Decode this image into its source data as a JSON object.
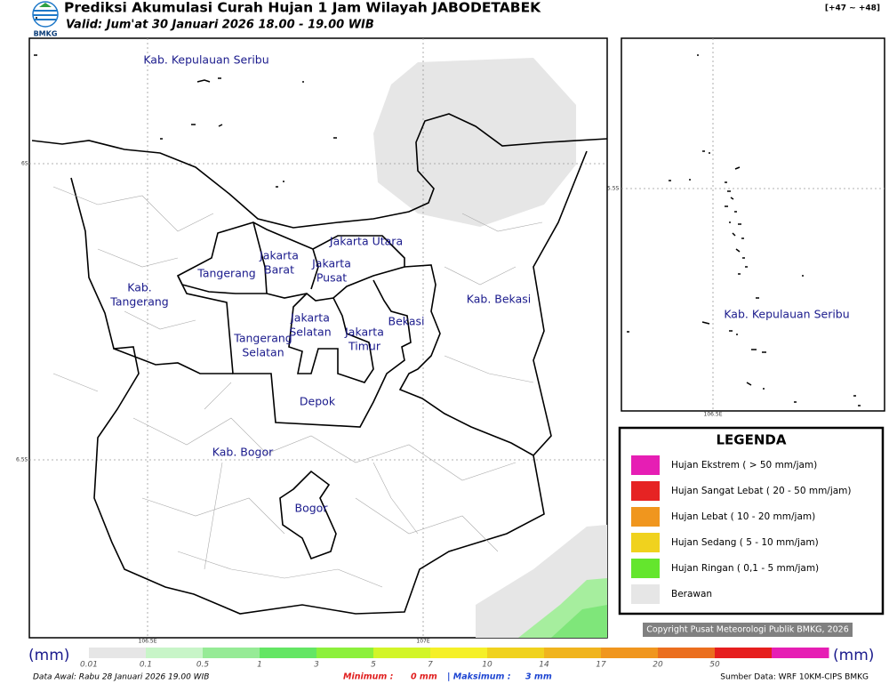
{
  "header": {
    "logo_text": "BMKG",
    "title": "Prediksi Akumulasi Curah Hujan 1 Jam Wilayah JABODETABEK",
    "valid": "Valid: Jum'at 30 Januari 2026 18.00 - 19.00 WIB",
    "range": "[+47 ~ +48]"
  },
  "main_map": {
    "regions": [
      {
        "lines": [
          "Kab. Kepulauan Seribu"
        ]
      },
      {
        "lines": [
          "Jakarta Utara"
        ]
      },
      {
        "lines": [
          "Jakarta",
          "Barat"
        ]
      },
      {
        "lines": [
          "Jakarta",
          "Pusat"
        ]
      },
      {
        "lines": [
          "Tangerang"
        ]
      },
      {
        "lines": [
          "Kab.",
          "Tangerang"
        ]
      },
      {
        "lines": [
          "Kab. Bekasi"
        ]
      },
      {
        "lines": [
          "Jakarta",
          "Selatan"
        ]
      },
      {
        "lines": [
          "Bekasi"
        ]
      },
      {
        "lines": [
          "Jakarta",
          "Timur"
        ]
      },
      {
        "lines": [
          "Tangerang",
          "Selatan"
        ]
      },
      {
        "lines": [
          "Depok"
        ]
      },
      {
        "lines": [
          "Kab. Bogor"
        ]
      },
      {
        "lines": [
          "Bogor"
        ]
      }
    ],
    "lat_labels": [
      "6S",
      "6.5S"
    ],
    "lon_labels": [
      "106.5E",
      "107E"
    ]
  },
  "inset_map": {
    "region": "Kab. Kepulauan Seribu",
    "lat_label": "5.5S",
    "lon_label": "106.5E"
  },
  "legend": {
    "title": "LEGENDA",
    "items": [
      {
        "label": "Hujan Ekstrem ( > 50 mm/jam)",
        "color": "#e61eb4"
      },
      {
        "label": "Hujan Sangat Lebat ( 20 - 50 mm/jam)",
        "color": "#e62323"
      },
      {
        "label": "Hujan Lebat ( 10 - 20 mm/jam)",
        "color": "#f0961e"
      },
      {
        "label": "Hujan Sedang ( 5 - 10 mm/jam)",
        "color": "#f0d21e"
      },
      {
        "label": "Hujan Ringan ( 0,1 - 5 mm/jam)",
        "color": "#64e62d"
      },
      {
        "label": "Berawan",
        "color": "#e6e6e6"
      }
    ]
  },
  "copyright": "Copyright Pusat Meteorologi Publik BMKG, 2026",
  "colorbar": {
    "unit_left": "(mm)",
    "unit_right": "(mm)",
    "labels": [
      "0.01",
      "0.1",
      "0.5",
      "1",
      "3",
      "5",
      "7",
      "10",
      "14",
      "17",
      "20",
      "50"
    ],
    "colors": [
      "#e6e6e6",
      "#c8f5c8",
      "#96eb96",
      "#64e664",
      "#8cf03c",
      "#d2f528",
      "#f5f028",
      "#f0d21e",
      "#f0b41e",
      "#f0961e",
      "#eb6e1e",
      "#e61e1e",
      "#e61eb4"
    ]
  },
  "footer": {
    "data_awal": "Data Awal: Rabu 28 Januari 2026 19.00 WIB",
    "minimum_label": "Minimum :",
    "minimum_value": "0 mm",
    "maximum_label": "| Maksimum :",
    "maximum_value": "3 mm",
    "source": "Sumber Data: WRF 10KM-CIPS BMKG"
  }
}
